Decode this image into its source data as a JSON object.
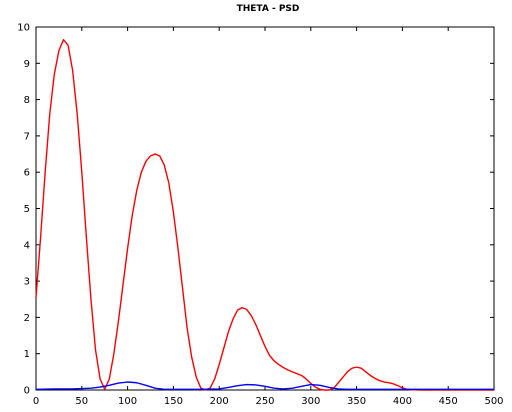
{
  "chart_data": {
    "type": "line",
    "title": "THETA - PSD",
    "xlabel": "",
    "ylabel": "",
    "xlim": [
      0,
      500
    ],
    "ylim": [
      0,
      10
    ],
    "grid": false,
    "legend": "none",
    "x_ticks": [
      "0",
      "50",
      "100",
      "150",
      "200",
      "250",
      "300",
      "350",
      "400",
      "450",
      "500"
    ],
    "y_ticks": [
      "0",
      "1",
      "2",
      "3",
      "4",
      "5",
      "6",
      "7",
      "8",
      "9",
      "10"
    ],
    "colors": {
      "red_series": "#ff0000",
      "blue_series": "#0000ff",
      "axes": "#000000"
    },
    "series": [
      {
        "color": "#ff0000",
        "points": [
          [
            0,
            2.55
          ],
          [
            5,
            4.2
          ],
          [
            10,
            6.0
          ],
          [
            15,
            7.6
          ],
          [
            20,
            8.7
          ],
          [
            25,
            9.35
          ],
          [
            30,
            9.65
          ],
          [
            35,
            9.5
          ],
          [
            40,
            8.8
          ],
          [
            45,
            7.6
          ],
          [
            50,
            6.0
          ],
          [
            55,
            4.2
          ],
          [
            60,
            2.5
          ],
          [
            65,
            1.1
          ],
          [
            70,
            0.3
          ],
          [
            75,
            0.02
          ],
          [
            80,
            0.3
          ],
          [
            85,
            1.0
          ],
          [
            90,
            1.9
          ],
          [
            95,
            2.9
          ],
          [
            100,
            3.9
          ],
          [
            105,
            4.8
          ],
          [
            110,
            5.5
          ],
          [
            115,
            6.0
          ],
          [
            120,
            6.3
          ],
          [
            125,
            6.45
          ],
          [
            130,
            6.5
          ],
          [
            135,
            6.45
          ],
          [
            140,
            6.2
          ],
          [
            145,
            5.7
          ],
          [
            150,
            4.9
          ],
          [
            155,
            3.9
          ],
          [
            160,
            2.8
          ],
          [
            165,
            1.7
          ],
          [
            170,
            0.9
          ],
          [
            175,
            0.35
          ],
          [
            180,
            0.05
          ],
          [
            185,
            0.0
          ],
          [
            190,
            0.05
          ],
          [
            195,
            0.3
          ],
          [
            200,
            0.7
          ],
          [
            205,
            1.15
          ],
          [
            210,
            1.6
          ],
          [
            215,
            1.95
          ],
          [
            220,
            2.2
          ],
          [
            225,
            2.27
          ],
          [
            230,
            2.22
          ],
          [
            235,
            2.05
          ],
          [
            240,
            1.8
          ],
          [
            245,
            1.5
          ],
          [
            250,
            1.2
          ],
          [
            255,
            0.95
          ],
          [
            260,
            0.8
          ],
          [
            265,
            0.7
          ],
          [
            270,
            0.62
          ],
          [
            275,
            0.55
          ],
          [
            280,
            0.5
          ],
          [
            285,
            0.45
          ],
          [
            290,
            0.4
          ],
          [
            295,
            0.3
          ],
          [
            300,
            0.18
          ],
          [
            305,
            0.08
          ],
          [
            310,
            0.02
          ],
          [
            315,
            0.0
          ],
          [
            320,
            0.0
          ],
          [
            325,
            0.05
          ],
          [
            330,
            0.2
          ],
          [
            335,
            0.35
          ],
          [
            340,
            0.5
          ],
          [
            345,
            0.6
          ],
          [
            350,
            0.63
          ],
          [
            355,
            0.6
          ],
          [
            360,
            0.5
          ],
          [
            365,
            0.4
          ],
          [
            370,
            0.32
          ],
          [
            375,
            0.26
          ],
          [
            380,
            0.22
          ],
          [
            385,
            0.2
          ],
          [
            390,
            0.17
          ],
          [
            395,
            0.12
          ],
          [
            400,
            0.06
          ],
          [
            405,
            0.02
          ],
          [
            410,
            0.01
          ],
          [
            420,
            0.0
          ],
          [
            440,
            0.0
          ],
          [
            460,
            0.0
          ],
          [
            480,
            0.0
          ],
          [
            500,
            0.0
          ]
        ]
      },
      {
        "color": "#0000ff",
        "points": [
          [
            0,
            0.02
          ],
          [
            20,
            0.03
          ],
          [
            40,
            0.03
          ],
          [
            60,
            0.05
          ],
          [
            70,
            0.08
          ],
          [
            80,
            0.13
          ],
          [
            90,
            0.19
          ],
          [
            100,
            0.22
          ],
          [
            110,
            0.2
          ],
          [
            120,
            0.13
          ],
          [
            130,
            0.05
          ],
          [
            140,
            0.02
          ],
          [
            160,
            0.02
          ],
          [
            180,
            0.02
          ],
          [
            200,
            0.03
          ],
          [
            210,
            0.07
          ],
          [
            220,
            0.12
          ],
          [
            230,
            0.15
          ],
          [
            240,
            0.14
          ],
          [
            250,
            0.1
          ],
          [
            260,
            0.05
          ],
          [
            270,
            0.03
          ],
          [
            280,
            0.05
          ],
          [
            290,
            0.1
          ],
          [
            300,
            0.15
          ],
          [
            310,
            0.13
          ],
          [
            320,
            0.07
          ],
          [
            330,
            0.03
          ],
          [
            340,
            0.02
          ],
          [
            360,
            0.02
          ],
          [
            380,
            0.02
          ],
          [
            400,
            0.02
          ],
          [
            420,
            0.02
          ],
          [
            440,
            0.02
          ],
          [
            460,
            0.02
          ],
          [
            480,
            0.02
          ],
          [
            500,
            0.02
          ]
        ]
      }
    ]
  }
}
